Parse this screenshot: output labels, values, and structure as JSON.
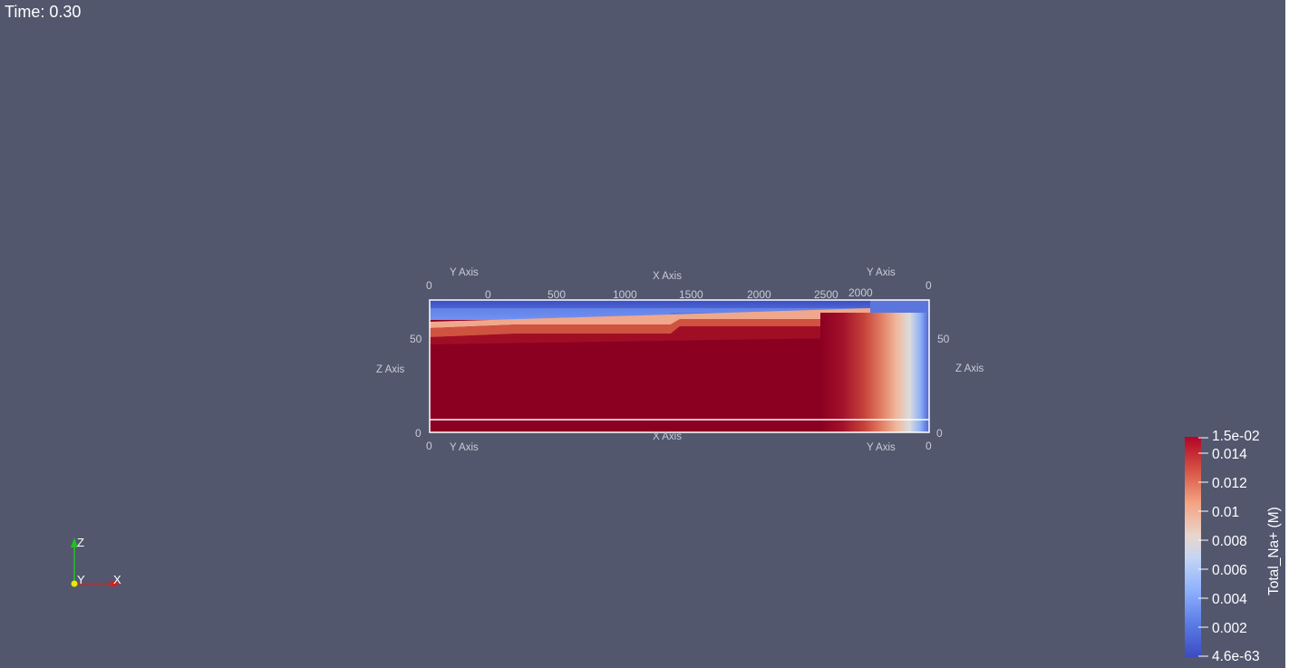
{
  "viewport": {
    "time_label": "Time: 0.30",
    "background_color": "#52576e"
  },
  "cube_axes": {
    "x_title": "X Axis",
    "y_title": "Y Axis",
    "z_title": "Z Axis",
    "x_ticks_top": [
      "0",
      "500",
      "1000",
      "1500",
      "2000",
      "2500"
    ],
    "y_tick_extra": "2000",
    "z_ticks": [
      "0",
      "50"
    ],
    "corner_zero": "0"
  },
  "colorbar": {
    "title": "Total_Na+ (M)",
    "range_label_max": "1.5e-02",
    "range_label_min": "4.6e-63",
    "ticks": [
      "0.014",
      "0.012",
      "0.01",
      "0.008",
      "0.006",
      "0.004",
      "0.002"
    ],
    "colormap": [
      "#3b4cc0",
      "#6f92f3",
      "#aac7fd",
      "#dddddd",
      "#f7b89c",
      "#e7745b",
      "#b40426",
      "#8b0020"
    ]
  },
  "orientation_triad": {
    "x_label": "X",
    "y_label": "Y",
    "z_label": "Z",
    "x_color": "#d42020",
    "y_color": "#e8e800",
    "z_color": "#20c020"
  },
  "field": {
    "high_color": "#8b0020",
    "low_color": "#3b4cc0"
  }
}
